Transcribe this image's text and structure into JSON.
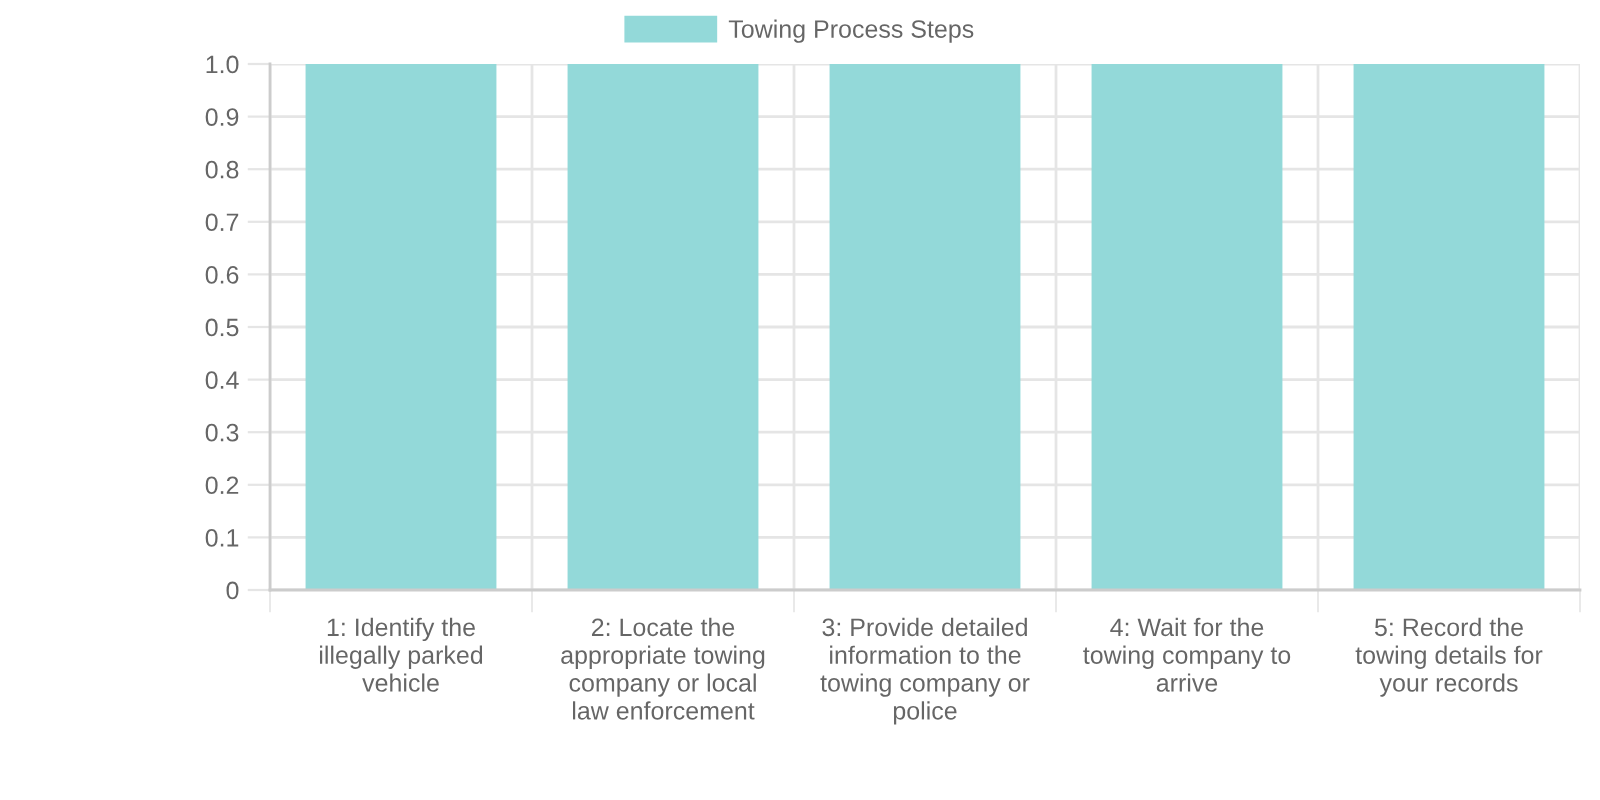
{
  "chart_data": {
    "type": "bar",
    "categories": [
      "1: Identify the illegally parked vehicle",
      "2: Locate the appropriate towing company or local law enforcement",
      "3: Provide detailed information to the towing company or police",
      "4: Wait for the towing company to arrive",
      "5: Record the towing details for your records"
    ],
    "series": [
      {
        "name": "Towing Process Steps",
        "color": "#93d9d9",
        "values": [
          1,
          1,
          1,
          1,
          1
        ]
      }
    ],
    "ylim": [
      0,
      1
    ],
    "yticks": [
      0,
      0.1,
      0.2,
      0.3,
      0.4,
      0.5,
      0.6,
      0.7,
      0.8,
      0.9,
      {
        "value": 1,
        "label": "1.0"
      }
    ],
    "grid": true,
    "legend": "top"
  }
}
